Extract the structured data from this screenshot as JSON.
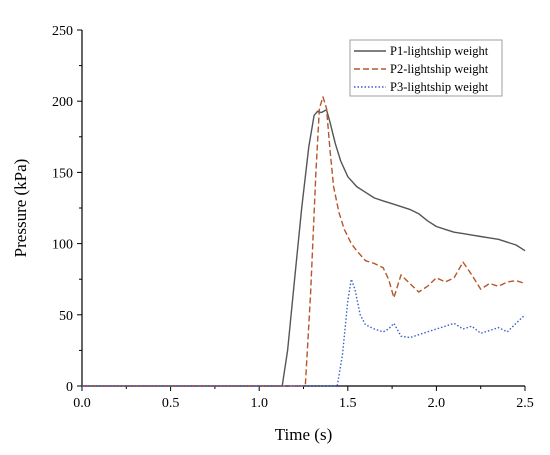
{
  "chart_data": {
    "type": "line",
    "title": "",
    "xlabel": "Time (s)",
    "ylabel": "Pressure (kPa)",
    "xlim": [
      0,
      2.5
    ],
    "ylim": [
      0,
      250
    ],
    "xticks": [
      0.0,
      0.5,
      1.0,
      1.5,
      2.0,
      2.5
    ],
    "yticks": [
      0,
      50,
      100,
      150,
      200,
      250
    ],
    "xtick_labels": [
      "0.0",
      "0.5",
      "1.0",
      "1.5",
      "2.0",
      "2.5"
    ],
    "ytick_labels": [
      "0",
      "50",
      "100",
      "150",
      "200",
      "250"
    ],
    "grid": false,
    "legend_position": "top-right",
    "series": [
      {
        "name": "P1-lightship weight",
        "color": "#555555",
        "style": "solid",
        "x": [
          0,
          1.13,
          1.16,
          1.2,
          1.24,
          1.28,
          1.31,
          1.33,
          1.35,
          1.38,
          1.4,
          1.43,
          1.46,
          1.5,
          1.55,
          1.6,
          1.65,
          1.7,
          1.75,
          1.8,
          1.85,
          1.9,
          1.95,
          2.0,
          2.05,
          2.1,
          2.15,
          2.2,
          2.25,
          2.3,
          2.35,
          2.4,
          2.45,
          2.5
        ],
        "y": [
          0,
          0,
          25,
          75,
          125,
          168,
          190,
          193,
          192,
          194,
          185,
          170,
          158,
          147,
          140,
          136,
          132,
          130,
          128,
          126,
          124,
          121,
          116,
          112,
          110,
          108,
          107,
          106,
          105,
          104,
          103,
          101,
          99,
          95
        ]
      },
      {
        "name": "P2-lightship weight",
        "color": "#b5562b",
        "style": "dashed",
        "x": [
          0,
          1.26,
          1.29,
          1.32,
          1.34,
          1.36,
          1.38,
          1.4,
          1.42,
          1.45,
          1.48,
          1.52,
          1.55,
          1.6,
          1.65,
          1.7,
          1.73,
          1.76,
          1.8,
          1.85,
          1.9,
          1.95,
          2.0,
          2.05,
          2.1,
          2.15,
          2.2,
          2.25,
          2.3,
          2.35,
          2.4,
          2.45,
          2.5
        ],
        "y": [
          0,
          0,
          65,
          150,
          195,
          203,
          195,
          165,
          140,
          122,
          110,
          100,
          95,
          88,
          86,
          83,
          75,
          62,
          78,
          72,
          66,
          70,
          76,
          73,
          76,
          87,
          78,
          68,
          72,
          70,
          73,
          74,
          72
        ]
      },
      {
        "name": "P3-lightship weight",
        "color": "#3a5fcd",
        "style": "dotted",
        "x": [
          0,
          1.44,
          1.47,
          1.5,
          1.52,
          1.54,
          1.57,
          1.6,
          1.65,
          1.7,
          1.73,
          1.76,
          1.8,
          1.85,
          1.9,
          1.95,
          2.0,
          2.05,
          2.1,
          2.15,
          2.2,
          2.25,
          2.3,
          2.35,
          2.4,
          2.45,
          2.5
        ],
        "y": [
          0,
          0,
          22,
          60,
          75,
          68,
          50,
          43,
          40,
          38,
          40,
          44,
          35,
          34,
          36,
          38,
          40,
          42,
          44,
          40,
          42,
          37,
          39,
          41,
          38,
          44,
          50
        ]
      }
    ]
  }
}
